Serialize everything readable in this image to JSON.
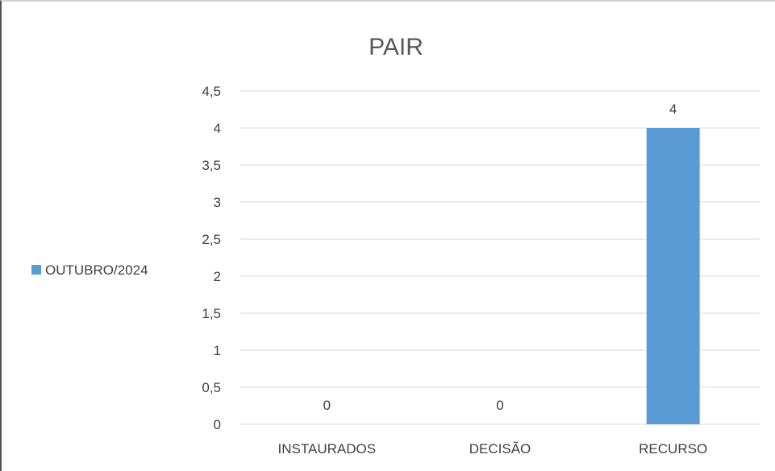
{
  "chart_data": {
    "type": "bar",
    "title": "PAIR",
    "categories": [
      "INSTAURADOS",
      "DECISÃO",
      "RECURSO"
    ],
    "series": [
      {
        "name": "OUTUBRO/2024",
        "values": [
          0,
          0,
          4
        ],
        "color": "#5b9bd5"
      }
    ],
    "y_ticks": [
      "0",
      "0,5",
      "1",
      "1,5",
      "2",
      "2,5",
      "3",
      "3,5",
      "4",
      "4,5"
    ],
    "data_labels": [
      "0",
      "0",
      "4"
    ],
    "ylim": [
      0,
      4.5
    ],
    "xlabel": "",
    "ylabel": "",
    "grid": true,
    "legend_position": "left"
  }
}
